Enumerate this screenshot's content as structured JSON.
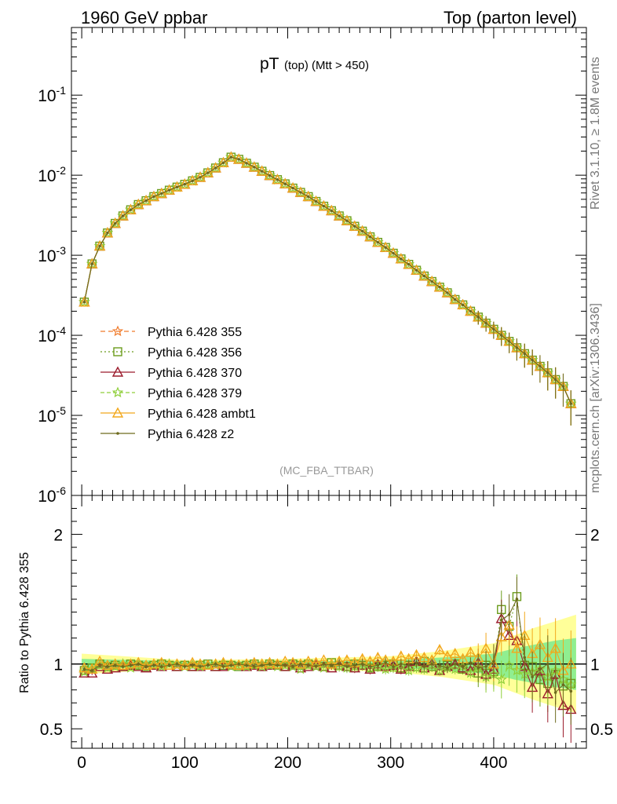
{
  "header": {
    "left": "1960 GeV ppbar",
    "right": "Top (parton level)"
  },
  "side_labels": {
    "rivet": "Rivet 3.1.10, ≥ 1.8M events",
    "mcplots": "mcplots.cern.ch [arXiv:1306.3436]"
  },
  "colors": {
    "Pythia 6.428 355": "#f07a2a",
    "Pythia 6.428 356": "#6b9c1c",
    "Pythia 6.428 370": "#9b1b2c",
    "Pythia 6.428 379": "#8fcf3a",
    "Pythia 6.428 ambt1": "#f2a81c",
    "Pythia 6.428 z2": "#6e6a1e",
    "band_inner": "#90ee90",
    "band_outer": "#ffff99"
  },
  "chart_data": [
    {
      "type": "line",
      "title": "pT",
      "title_suffix": "(top) (Mtt > 450)",
      "watermark": "(MC_FBA_TTBAR)",
      "log_y": true,
      "xlim": [
        -10,
        490
      ],
      "ylim": [
        1e-06,
        0.7
      ],
      "y_tick_labels": [
        "10^-1",
        "10^-2",
        "10^-3",
        "10^-4",
        "10^-5",
        "10^-6"
      ],
      "legend_position": "bottom-left",
      "x": [
        2.5,
        10,
        17.5,
        25,
        32.5,
        40,
        47.5,
        55,
        62.5,
        70,
        77.5,
        85,
        92.5,
        100,
        107.5,
        115,
        122.5,
        130,
        137.5,
        145,
        152.5,
        160,
        167.5,
        175,
        182.5,
        190,
        197.5,
        205,
        212.5,
        220,
        227.5,
        235,
        242.5,
        250,
        257.5,
        265,
        272.5,
        280,
        287.5,
        295,
        302.5,
        310,
        317.5,
        325,
        332.5,
        340,
        347.5,
        355,
        362.5,
        370,
        377.5,
        385,
        392.5,
        400,
        407.5,
        415,
        422.5,
        430,
        437.5,
        445,
        452.5,
        460,
        467.5,
        475
      ],
      "series": [
        {
          "name": "Pythia 6.428 355",
          "marker": "star",
          "dash": "6,4",
          "values": [
            0.00026,
            0.00078,
            0.0013,
            0.0019,
            0.0025,
            0.0031,
            0.0037,
            0.0043,
            0.0048,
            0.0054,
            0.0059,
            0.0065,
            0.0071,
            0.0077,
            0.0085,
            0.0094,
            0.0107,
            0.0123,
            0.0143,
            0.0168,
            0.0158,
            0.0141,
            0.0126,
            0.0112,
            0.0099,
            0.0088,
            0.0078,
            0.0069,
            0.0061,
            0.0054,
            0.0047,
            0.0041,
            0.0036,
            0.0031,
            0.0027,
            0.0023,
            0.002,
            0.0017,
            0.00145,
            0.00125,
            0.00106,
            0.0009,
            0.00077,
            0.00065,
            0.00055,
            0.00047,
            0.0004,
            0.00034,
            0.00028,
            0.00024,
            0.0002,
            0.000169,
            0.000142,
            0.000119,
            0.0001,
            8.4e-05,
            7e-05,
            5.9e-05,
            4.9e-05,
            4.1e-05,
            3.4e-05,
            2.8e-05,
            2.3e-05,
            1.4e-05
          ]
        },
        {
          "name": "Pythia 6.428 356",
          "marker": "square",
          "dash": "2,3",
          "values": [
            0.00026,
            0.00078,
            0.0013,
            0.0019,
            0.0025,
            0.0031,
            0.0037,
            0.0043,
            0.0048,
            0.0054,
            0.0059,
            0.0065,
            0.0071,
            0.0077,
            0.0085,
            0.0094,
            0.0107,
            0.0123,
            0.0143,
            0.0168,
            0.0158,
            0.0141,
            0.0126,
            0.0112,
            0.0099,
            0.0088,
            0.0078,
            0.0069,
            0.0061,
            0.0054,
            0.0047,
            0.0041,
            0.0036,
            0.0031,
            0.0027,
            0.0023,
            0.002,
            0.0017,
            0.00145,
            0.00125,
            0.00106,
            0.0009,
            0.00077,
            0.00065,
            0.00055,
            0.00047,
            0.0004,
            0.00034,
            0.00028,
            0.00024,
            0.0002,
            0.000169,
            0.000142,
            0.000119,
            0.0001,
            8.4e-05,
            7e-05,
            5.9e-05,
            4.9e-05,
            4.1e-05,
            3.4e-05,
            2.8e-05,
            2.3e-05,
            1.4e-05
          ]
        },
        {
          "name": "Pythia 6.428 370",
          "marker": "triangle",
          "dash": "",
          "values": [
            0.00026,
            0.00078,
            0.0013,
            0.0019,
            0.0025,
            0.0031,
            0.0037,
            0.0043,
            0.0048,
            0.0054,
            0.0059,
            0.0065,
            0.0071,
            0.0077,
            0.0085,
            0.0094,
            0.0107,
            0.0123,
            0.0143,
            0.0168,
            0.0158,
            0.0141,
            0.0126,
            0.0112,
            0.0099,
            0.0088,
            0.0078,
            0.0069,
            0.0061,
            0.0054,
            0.0047,
            0.0041,
            0.0036,
            0.0031,
            0.0027,
            0.0023,
            0.002,
            0.0017,
            0.00145,
            0.00125,
            0.00106,
            0.0009,
            0.00077,
            0.00065,
            0.00055,
            0.00047,
            0.0004,
            0.00034,
            0.00028,
            0.00024,
            0.0002,
            0.000169,
            0.000142,
            0.000119,
            0.0001,
            8.4e-05,
            7e-05,
            5.9e-05,
            4.9e-05,
            4.1e-05,
            3.4e-05,
            2.8e-05,
            2.3e-05,
            1.4e-05
          ]
        },
        {
          "name": "Pythia 6.428 379",
          "marker": "star",
          "dash": "5,3",
          "values": [
            0.00026,
            0.00078,
            0.0013,
            0.0019,
            0.0025,
            0.0031,
            0.0037,
            0.0043,
            0.0048,
            0.0054,
            0.0059,
            0.0065,
            0.0071,
            0.0077,
            0.0085,
            0.0094,
            0.0107,
            0.0123,
            0.0143,
            0.0168,
            0.0158,
            0.0141,
            0.0126,
            0.0112,
            0.0099,
            0.0088,
            0.0078,
            0.0069,
            0.0061,
            0.0054,
            0.0047,
            0.0041,
            0.0036,
            0.0031,
            0.0027,
            0.0023,
            0.002,
            0.0017,
            0.00145,
            0.00125,
            0.00106,
            0.0009,
            0.00077,
            0.00065,
            0.00055,
            0.00047,
            0.0004,
            0.00034,
            0.00028,
            0.00024,
            0.0002,
            0.000169,
            0.000142,
            0.000119,
            0.0001,
            8.4e-05,
            7e-05,
            5.9e-05,
            4.9e-05,
            4.1e-05,
            3.4e-05,
            2.8e-05,
            2.3e-05,
            1.4e-05
          ]
        },
        {
          "name": "Pythia 6.428 ambt1",
          "marker": "triangle",
          "dash": "",
          "values": [
            0.00026,
            0.00078,
            0.0013,
            0.0019,
            0.0025,
            0.0031,
            0.0037,
            0.0043,
            0.0048,
            0.0054,
            0.0059,
            0.0065,
            0.0071,
            0.0077,
            0.0085,
            0.0094,
            0.0107,
            0.0123,
            0.0143,
            0.0168,
            0.0158,
            0.0141,
            0.0126,
            0.0112,
            0.0099,
            0.0088,
            0.0078,
            0.0069,
            0.0061,
            0.0054,
            0.0047,
            0.0041,
            0.0036,
            0.0031,
            0.0027,
            0.0023,
            0.002,
            0.0017,
            0.00145,
            0.00125,
            0.00106,
            0.0009,
            0.00077,
            0.00065,
            0.00055,
            0.00047,
            0.0004,
            0.00034,
            0.00028,
            0.00024,
            0.0002,
            0.000169,
            0.000142,
            0.000119,
            0.0001,
            8.4e-05,
            7e-05,
            5.9e-05,
            4.9e-05,
            4.1e-05,
            3.4e-05,
            2.8e-05,
            2.3e-05,
            1.4e-05
          ]
        },
        {
          "name": "Pythia 6.428 z2",
          "marker": "dot",
          "dash": "",
          "values": [
            0.00026,
            0.00078,
            0.0013,
            0.0019,
            0.0025,
            0.0031,
            0.0037,
            0.0043,
            0.0048,
            0.0054,
            0.0059,
            0.0065,
            0.0071,
            0.0077,
            0.0085,
            0.0094,
            0.0107,
            0.0123,
            0.0143,
            0.0168,
            0.0158,
            0.0141,
            0.0126,
            0.0112,
            0.0099,
            0.0088,
            0.0078,
            0.0069,
            0.0061,
            0.0054,
            0.0047,
            0.0041,
            0.0036,
            0.0031,
            0.0027,
            0.0023,
            0.002,
            0.0017,
            0.00145,
            0.00125,
            0.00106,
            0.0009,
            0.00077,
            0.00065,
            0.00055,
            0.00047,
            0.0004,
            0.00034,
            0.00028,
            0.00024,
            0.0002,
            0.000169,
            0.000142,
            0.000119,
            0.0001,
            8.4e-05,
            7e-05,
            5.9e-05,
            4.9e-05,
            4.1e-05,
            3.4e-05,
            2.8e-05,
            2.3e-05,
            1.4e-05
          ]
        }
      ]
    },
    {
      "type": "line",
      "ylabel": "Ratio to Pythia 6.428 355",
      "xlim": [
        -10,
        490
      ],
      "ylim": [
        0.35,
        2.3
      ],
      "y_ticks": [
        0.5,
        1,
        2
      ],
      "y_tick_labels": [
        "0.5",
        "1",
        "2"
      ],
      "x_ticks": [
        0,
        100,
        200,
        300,
        400
      ],
      "x_tick_labels": [
        "0",
        "100",
        "200",
        "300",
        "400"
      ],
      "x": [
        2.5,
        10,
        17.5,
        25,
        32.5,
        40,
        47.5,
        55,
        62.5,
        70,
        77.5,
        85,
        92.5,
        100,
        107.5,
        115,
        122.5,
        130,
        137.5,
        145,
        152.5,
        160,
        167.5,
        175,
        182.5,
        190,
        197.5,
        205,
        212.5,
        220,
        227.5,
        235,
        242.5,
        250,
        257.5,
        265,
        272.5,
        280,
        287.5,
        295,
        302.5,
        310,
        317.5,
        325,
        332.5,
        340,
        347.5,
        355,
        362.5,
        370,
        377.5,
        385,
        392.5,
        400,
        407.5,
        415,
        422.5,
        430,
        437.5,
        445,
        452.5,
        460,
        467.5,
        475
      ],
      "band": {
        "x": [
          0,
          100,
          200,
          300,
          350,
          400,
          420,
          440,
          460,
          480
        ],
        "inner": [
          0.04,
          0.02,
          0.02,
          0.03,
          0.05,
          0.08,
          0.12,
          0.15,
          0.18,
          0.2
        ],
        "outer": [
          0.08,
          0.03,
          0.04,
          0.06,
          0.1,
          0.16,
          0.22,
          0.28,
          0.33,
          0.38
        ]
      },
      "series": [
        {
          "name": "Pythia 6.428 356",
          "values": [
            0.95,
            0.97,
            1.0,
            0.98,
            0.99,
            0.98,
            1.0,
            0.99,
            0.98,
            0.99,
            1.0,
            0.99,
            0.98,
            0.99,
            0.98,
            0.99,
            1.0,
            0.98,
            0.99,
            0.99,
            0.98,
            0.99,
            1.0,
            0.98,
            1.0,
            0.99,
            0.98,
            1.0,
            0.99,
            1.0,
            0.99,
            0.98,
            1.01,
            0.99,
            0.98,
            1.0,
            0.99,
            0.97,
            0.98,
            0.99,
            1.0,
            0.97,
            0.99,
            0.98,
            1.02,
            0.98,
            0.95,
            0.99,
            1.0,
            0.96,
            0.98,
            0.93,
            0.99,
            0.94,
            1.42,
            1.29,
            1.52,
            0.99,
            0.98,
            0.88,
            0.85,
            0.92,
            0.83,
            0.85
          ]
        },
        {
          "name": "Pythia 6.428 370",
          "values": [
            0.93,
            0.93,
            0.98,
            0.96,
            0.97,
            0.98,
            0.99,
            0.98,
            0.97,
            0.99,
            0.98,
            0.99,
            0.98,
            0.99,
            0.98,
            0.98,
            0.99,
            0.98,
            0.98,
            0.99,
            0.99,
            0.98,
            0.99,
            0.98,
            0.99,
            0.99,
            0.98,
            0.99,
            0.97,
            0.98,
            0.99,
            0.98,
            0.97,
            0.99,
            0.98,
            0.97,
            0.99,
            0.96,
            1.0,
            0.98,
            0.99,
            0.96,
            0.98,
            1.02,
            0.97,
            1.0,
            0.95,
            0.98,
            1.0,
            0.97,
            0.95,
            1.01,
            0.92,
            0.96,
            1.35,
            1.22,
            1.18,
            0.98,
            0.82,
            0.95,
            0.77,
            0.92,
            0.68,
            0.65
          ]
        },
        {
          "name": "Pythia 6.428 379",
          "values": [
            0.94,
            0.96,
            0.99,
            0.97,
            0.98,
            1.0,
            0.97,
            0.99,
            0.98,
            0.99,
            0.98,
            1.0,
            0.99,
            0.98,
            0.99,
            0.98,
            0.99,
            0.99,
            1.0,
            0.98,
            0.99,
            0.98,
            0.99,
            0.98,
            0.99,
            0.98,
            0.99,
            0.98,
            0.96,
            0.99,
            0.98,
            0.97,
            0.99,
            0.98,
            0.97,
            0.98,
            0.99,
            0.97,
            0.98,
            0.96,
            0.97,
            0.99,
            0.95,
            0.97,
            0.96,
            0.99,
            0.95,
            0.97,
            0.96,
            0.98,
            0.93,
            0.97,
            0.9,
            0.92,
            0.88,
            0.99,
            0.95,
            0.92,
            0.94,
            0.96,
            0.9,
            0.95,
            0.88,
            0.84
          ]
        },
        {
          "name": "Pythia 6.428 ambt1",
          "values": [
            0.97,
            0.96,
            1.02,
            0.99,
            1.0,
            0.99,
            1.0,
            1.01,
            0.99,
            1.0,
            1.01,
            0.99,
            1.0,
            0.99,
            1.01,
            1.0,
            0.99,
            1.0,
            1.01,
            1.0,
            0.99,
            1.0,
            1.01,
            1.0,
            1.01,
            1.0,
            1.02,
            1.01,
            1.0,
            1.02,
            1.01,
            1.03,
            1.0,
            1.02,
            1.03,
            1.01,
            1.04,
            1.02,
            1.05,
            1.03,
            1.02,
            1.06,
            1.04,
            1.07,
            1.05,
            1.03,
            1.11,
            1.06,
            1.08,
            1.04,
            1.09,
            1.05,
            1.12,
            1.0,
            1.21,
            1.3,
            1.12,
            1.22,
            1.08,
            1.15,
            1.05,
            1.12,
            0.95,
            1.0
          ]
        },
        {
          "name": "Pythia 6.428 z2",
          "values": [
            0.96,
            0.95,
            0.99,
            0.98,
            0.99,
            0.98,
            0.99,
            1.0,
            0.98,
            0.99,
            0.98,
            0.99,
            1.0,
            0.98,
            0.99,
            0.98,
            0.99,
            1.0,
            0.98,
            0.99,
            1.0,
            0.99,
            0.98,
            0.99,
            1.0,
            0.99,
            0.99,
            0.98,
            1.0,
            0.99,
            0.98,
            1.0,
            0.99,
            1.0,
            0.98,
            0.99,
            1.0,
            0.98,
            0.99,
            1.01,
            0.98,
            1.0,
            0.99,
            1.01,
            0.98,
            1.0,
            0.99,
            0.97,
            1.0,
            0.98,
            1.01,
            0.97,
            0.98,
            1.02,
            1.34,
            1.38,
            1.5,
            1.05,
            0.9,
            0.96,
            1.0,
            0.78,
            0.84,
            0.79
          ]
        }
      ]
    }
  ],
  "legend": [
    {
      "label": "Pythia 6.428 355"
    },
    {
      "label": "Pythia 6.428 356"
    },
    {
      "label": "Pythia 6.428 370"
    },
    {
      "label": "Pythia 6.428 379"
    },
    {
      "label": "Pythia 6.428 ambt1"
    },
    {
      "label": "Pythia 6.428 z2"
    }
  ]
}
